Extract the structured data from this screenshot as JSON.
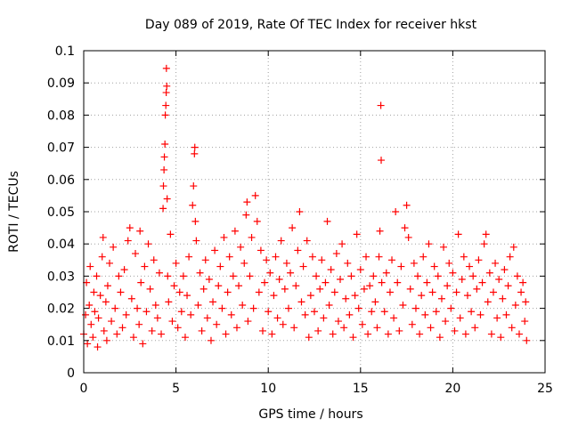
{
  "chart_data": {
    "type": "scatter",
    "title": "Day 089 of 2019, Rate Of TEC Index for receiver hkst",
    "xlabel": "GPS time / hours",
    "ylabel": "ROTI / TECUs",
    "xlim": [
      0,
      25
    ],
    "ylim": [
      0,
      0.1
    ],
    "grid": true,
    "marker": "+",
    "color": "#ff0000",
    "x_ticks": [
      {
        "value": 0,
        "label": "0"
      },
      {
        "value": 5,
        "label": "5"
      },
      {
        "value": 10,
        "label": "10"
      },
      {
        "value": 15,
        "label": "15"
      },
      {
        "value": 20,
        "label": "20"
      },
      {
        "value": 25,
        "label": "25"
      }
    ],
    "y_ticks": [
      {
        "value": 0,
        "label": "0"
      },
      {
        "value": 0.01,
        "label": "0.01"
      },
      {
        "value": 0.02,
        "label": "0.02"
      },
      {
        "value": 0.03,
        "label": "0.03"
      },
      {
        "value": 0.04,
        "label": "0.04"
      },
      {
        "value": 0.05,
        "label": "0.05"
      },
      {
        "value": 0.06,
        "label": "0.06"
      },
      {
        "value": 0.07,
        "label": "0.07"
      },
      {
        "value": 0.08,
        "label": "0.08"
      },
      {
        "value": 0.09,
        "label": "0.09"
      },
      {
        "value": 0.1,
        "label": "0.1"
      }
    ],
    "series": [
      {
        "name": "ROTI",
        "points": [
          [
            0.0,
            0.012
          ],
          [
            0.1,
            0.018
          ],
          [
            0.15,
            0.028
          ],
          [
            0.2,
            0.009
          ],
          [
            0.3,
            0.021
          ],
          [
            0.35,
            0.033
          ],
          [
            0.4,
            0.015
          ],
          [
            0.5,
            0.011
          ],
          [
            0.55,
            0.025
          ],
          [
            0.6,
            0.019
          ],
          [
            0.7,
            0.03
          ],
          [
            0.75,
            0.008
          ],
          [
            0.8,
            0.017
          ],
          [
            0.9,
            0.024
          ],
          [
            1.0,
            0.036
          ],
          [
            1.05,
            0.042
          ],
          [
            1.1,
            0.013
          ],
          [
            1.2,
            0.022
          ],
          [
            1.25,
            0.01
          ],
          [
            1.3,
            0.027
          ],
          [
            1.4,
            0.034
          ],
          [
            1.5,
            0.016
          ],
          [
            1.6,
            0.039
          ],
          [
            1.7,
            0.02
          ],
          [
            1.8,
            0.012
          ],
          [
            1.9,
            0.03
          ],
          [
            2.0,
            0.025
          ],
          [
            2.1,
            0.014
          ],
          [
            2.2,
            0.032
          ],
          [
            2.3,
            0.018
          ],
          [
            2.4,
            0.041
          ],
          [
            2.5,
            0.045
          ],
          [
            2.6,
            0.023
          ],
          [
            2.7,
            0.011
          ],
          [
            2.8,
            0.037
          ],
          [
            2.9,
            0.02
          ],
          [
            3.0,
            0.015
          ],
          [
            3.05,
            0.044
          ],
          [
            3.1,
            0.028
          ],
          [
            3.2,
            0.009
          ],
          [
            3.3,
            0.033
          ],
          [
            3.4,
            0.019
          ],
          [
            3.5,
            0.04
          ],
          [
            3.6,
            0.026
          ],
          [
            3.7,
            0.013
          ],
          [
            3.8,
            0.035
          ],
          [
            3.9,
            0.021
          ],
          [
            4.0,
            0.017
          ],
          [
            4.1,
            0.031
          ],
          [
            4.2,
            0.012
          ],
          [
            4.3,
            0.051
          ],
          [
            4.32,
            0.058
          ],
          [
            4.35,
            0.063
          ],
          [
            4.37,
            0.067
          ],
          [
            4.4,
            0.071
          ],
          [
            4.42,
            0.08
          ],
          [
            4.45,
            0.083
          ],
          [
            4.47,
            0.087
          ],
          [
            4.5,
            0.089
          ],
          [
            4.48,
            0.0945
          ],
          [
            4.52,
            0.054
          ],
          [
            4.55,
            0.03
          ],
          [
            4.6,
            0.022
          ],
          [
            4.7,
            0.043
          ],
          [
            4.8,
            0.016
          ],
          [
            4.9,
            0.027
          ],
          [
            5.0,
            0.034
          ],
          [
            5.1,
            0.014
          ],
          [
            5.2,
            0.025
          ],
          [
            5.3,
            0.019
          ],
          [
            5.4,
            0.03
          ],
          [
            5.5,
            0.011
          ],
          [
            5.6,
            0.024
          ],
          [
            5.7,
            0.036
          ],
          [
            5.8,
            0.018
          ],
          [
            5.9,
            0.052
          ],
          [
            5.95,
            0.058
          ],
          [
            6.0,
            0.068
          ],
          [
            6.02,
            0.07
          ],
          [
            6.05,
            0.047
          ],
          [
            6.1,
            0.041
          ],
          [
            6.2,
            0.021
          ],
          [
            6.3,
            0.031
          ],
          [
            6.4,
            0.013
          ],
          [
            6.5,
            0.026
          ],
          [
            6.6,
            0.035
          ],
          [
            6.7,
            0.017
          ],
          [
            6.8,
            0.029
          ],
          [
            6.9,
            0.01
          ],
          [
            7.0,
            0.022
          ],
          [
            7.1,
            0.038
          ],
          [
            7.2,
            0.015
          ],
          [
            7.3,
            0.027
          ],
          [
            7.4,
            0.033
          ],
          [
            7.5,
            0.02
          ],
          [
            7.6,
            0.042
          ],
          [
            7.7,
            0.012
          ],
          [
            7.8,
            0.025
          ],
          [
            7.9,
            0.036
          ],
          [
            8.0,
            0.018
          ],
          [
            8.1,
            0.03
          ],
          [
            8.2,
            0.044
          ],
          [
            8.3,
            0.014
          ],
          [
            8.4,
            0.027
          ],
          [
            8.5,
            0.039
          ],
          [
            8.6,
            0.021
          ],
          [
            8.7,
            0.034
          ],
          [
            8.8,
            0.049
          ],
          [
            8.85,
            0.053
          ],
          [
            8.9,
            0.016
          ],
          [
            9.0,
            0.03
          ],
          [
            9.1,
            0.042
          ],
          [
            9.2,
            0.02
          ],
          [
            9.3,
            0.055
          ],
          [
            9.4,
            0.047
          ],
          [
            9.5,
            0.025
          ],
          [
            9.6,
            0.038
          ],
          [
            9.7,
            0.013
          ],
          [
            9.8,
            0.028
          ],
          [
            9.9,
            0.035
          ],
          [
            10.0,
            0.019
          ],
          [
            10.1,
            0.031
          ],
          [
            10.2,
            0.012
          ],
          [
            10.3,
            0.024
          ],
          [
            10.4,
            0.036
          ],
          [
            10.5,
            0.017
          ],
          [
            10.6,
            0.029
          ],
          [
            10.7,
            0.041
          ],
          [
            10.8,
            0.015
          ],
          [
            10.9,
            0.026
          ],
          [
            11.0,
            0.034
          ],
          [
            11.1,
            0.02
          ],
          [
            11.2,
            0.031
          ],
          [
            11.3,
            0.045
          ],
          [
            11.4,
            0.014
          ],
          [
            11.5,
            0.027
          ],
          [
            11.6,
            0.038
          ],
          [
            11.7,
            0.05
          ],
          [
            11.8,
            0.022
          ],
          [
            11.9,
            0.033
          ],
          [
            12.0,
            0.018
          ],
          [
            12.1,
            0.041
          ],
          [
            12.2,
            0.011
          ],
          [
            12.3,
            0.024
          ],
          [
            12.4,
            0.036
          ],
          [
            12.5,
            0.019
          ],
          [
            12.6,
            0.03
          ],
          [
            12.7,
            0.013
          ],
          [
            12.8,
            0.026
          ],
          [
            12.9,
            0.035
          ],
          [
            13.0,
            0.017
          ],
          [
            13.1,
            0.028
          ],
          [
            13.2,
            0.047
          ],
          [
            13.3,
            0.021
          ],
          [
            13.4,
            0.032
          ],
          [
            13.5,
            0.012
          ],
          [
            13.6,
            0.025
          ],
          [
            13.7,
            0.037
          ],
          [
            13.8,
            0.016
          ],
          [
            13.9,
            0.029
          ],
          [
            14.0,
            0.04
          ],
          [
            14.1,
            0.014
          ],
          [
            14.2,
            0.023
          ],
          [
            14.3,
            0.034
          ],
          [
            14.4,
            0.018
          ],
          [
            14.5,
            0.03
          ],
          [
            14.6,
            0.011
          ],
          [
            14.7,
            0.024
          ],
          [
            14.8,
            0.043
          ],
          [
            14.9,
            0.02
          ],
          [
            15.0,
            0.032
          ],
          [
            15.1,
            0.015
          ],
          [
            15.2,
            0.026
          ],
          [
            15.3,
            0.036
          ],
          [
            15.4,
            0.012
          ],
          [
            15.5,
            0.027
          ],
          [
            15.6,
            0.019
          ],
          [
            15.7,
            0.03
          ],
          [
            15.8,
            0.022
          ],
          [
            15.9,
            0.014
          ],
          [
            16.0,
            0.036
          ],
          [
            16.05,
            0.044
          ],
          [
            16.1,
            0.083
          ],
          [
            16.12,
            0.066
          ],
          [
            16.15,
            0.028
          ],
          [
            16.3,
            0.019
          ],
          [
            16.4,
            0.031
          ],
          [
            16.5,
            0.012
          ],
          [
            16.6,
            0.025
          ],
          [
            16.7,
            0.035
          ],
          [
            16.8,
            0.017
          ],
          [
            16.9,
            0.05
          ],
          [
            17.0,
            0.028
          ],
          [
            17.1,
            0.013
          ],
          [
            17.2,
            0.033
          ],
          [
            17.3,
            0.021
          ],
          [
            17.4,
            0.045
          ],
          [
            17.5,
            0.052
          ],
          [
            17.6,
            0.042
          ],
          [
            17.7,
            0.026
          ],
          [
            17.8,
            0.015
          ],
          [
            17.9,
            0.034
          ],
          [
            18.0,
            0.02
          ],
          [
            18.1,
            0.03
          ],
          [
            18.2,
            0.012
          ],
          [
            18.3,
            0.024
          ],
          [
            18.4,
            0.036
          ],
          [
            18.5,
            0.018
          ],
          [
            18.6,
            0.028
          ],
          [
            18.7,
            0.04
          ],
          [
            18.8,
            0.014
          ],
          [
            18.9,
            0.025
          ],
          [
            19.0,
            0.033
          ],
          [
            19.1,
            0.019
          ],
          [
            19.2,
            0.03
          ],
          [
            19.3,
            0.011
          ],
          [
            19.4,
            0.023
          ],
          [
            19.5,
            0.039
          ],
          [
            19.6,
            0.016
          ],
          [
            19.7,
            0.027
          ],
          [
            19.8,
            0.034
          ],
          [
            19.9,
            0.02
          ],
          [
            20.0,
            0.031
          ],
          [
            20.1,
            0.013
          ],
          [
            20.2,
            0.025
          ],
          [
            20.3,
            0.043
          ],
          [
            20.4,
            0.017
          ],
          [
            20.5,
            0.029
          ],
          [
            20.6,
            0.036
          ],
          [
            20.7,
            0.012
          ],
          [
            20.8,
            0.024
          ],
          [
            20.9,
            0.033
          ],
          [
            21.0,
            0.019
          ],
          [
            21.1,
            0.03
          ],
          [
            21.2,
            0.014
          ],
          [
            21.3,
            0.026
          ],
          [
            21.4,
            0.035
          ],
          [
            21.5,
            0.018
          ],
          [
            21.6,
            0.028
          ],
          [
            21.7,
            0.04
          ],
          [
            21.8,
            0.043
          ],
          [
            21.9,
            0.022
          ],
          [
            22.0,
            0.031
          ],
          [
            22.1,
            0.012
          ],
          [
            22.2,
            0.025
          ],
          [
            22.3,
            0.034
          ],
          [
            22.4,
            0.017
          ],
          [
            22.5,
            0.029
          ],
          [
            22.6,
            0.011
          ],
          [
            22.7,
            0.023
          ],
          [
            22.8,
            0.032
          ],
          [
            22.9,
            0.018
          ],
          [
            23.0,
            0.027
          ],
          [
            23.1,
            0.036
          ],
          [
            23.2,
            0.014
          ],
          [
            23.3,
            0.039
          ],
          [
            23.4,
            0.021
          ],
          [
            23.5,
            0.03
          ],
          [
            23.6,
            0.012
          ],
          [
            23.7,
            0.025
          ],
          [
            23.8,
            0.028
          ],
          [
            23.9,
            0.016
          ],
          [
            23.95,
            0.022
          ],
          [
            24.0,
            0.01
          ]
        ]
      }
    ]
  }
}
